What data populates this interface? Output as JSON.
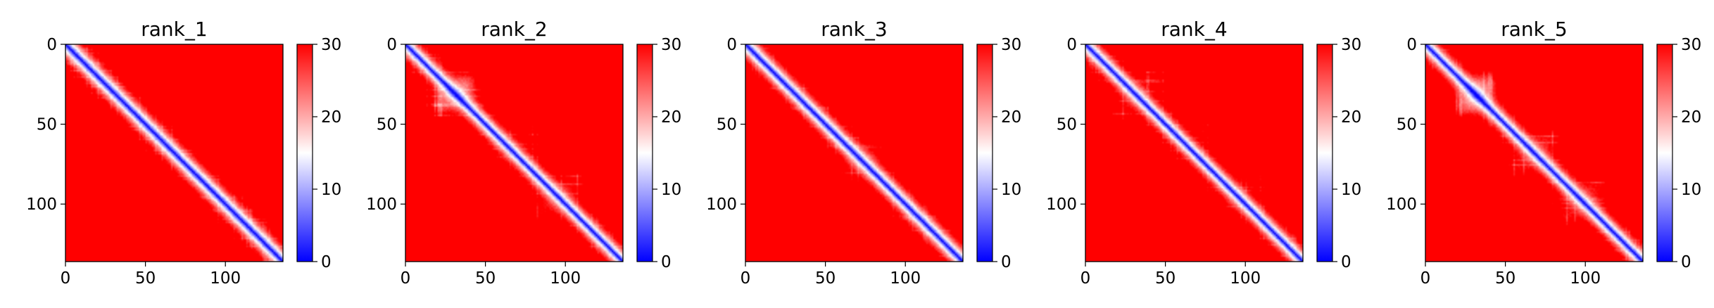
{
  "chart_data": [
    {
      "type": "heatmap",
      "title": "rank_1",
      "xlabel": "",
      "ylabel": "",
      "matrix_size": 136,
      "xlim": [
        0,
        136
      ],
      "ylim": [
        136,
        0
      ],
      "x_ticks": [
        0,
        50,
        100
      ],
      "y_ticks": [
        0,
        50,
        100
      ],
      "colorbar": {
        "range": [
          0,
          30
        ],
        "ticks": [
          0,
          10,
          20,
          30
        ],
        "colormap": "bwr"
      },
      "pattern": {
        "diagonal_value": 0,
        "band_width": 7.0,
        "saturation_value": 30,
        "offdiag_variation": "mostly saturated red with faint stripes",
        "blobs": []
      }
    },
    {
      "type": "heatmap",
      "title": "rank_2",
      "xlabel": "",
      "ylabel": "",
      "matrix_size": 136,
      "xlim": [
        0,
        136
      ],
      "ylim": [
        136,
        0
      ],
      "x_ticks": [
        0,
        50,
        100
      ],
      "y_ticks": [
        0,
        50,
        100
      ],
      "colorbar": {
        "range": [
          0,
          30
        ],
        "ticks": [
          0,
          10,
          20,
          30
        ],
        "colormap": "bwr"
      },
      "pattern": {
        "diagonal_value": 0,
        "band_width": 6.0,
        "saturation_value": 30,
        "offdiag_variation": "lighter blobs in secondary structure contacts",
        "blobs": [
          [
            40,
            20,
            22
          ],
          [
            80,
            50,
            22
          ],
          [
            108,
            82,
            22
          ],
          [
            22,
            40,
            22
          ],
          [
            50,
            80,
            22
          ],
          [
            82,
            108,
            22
          ],
          [
            75,
            20,
            24
          ],
          [
            20,
            75,
            24
          ]
        ]
      }
    },
    {
      "type": "heatmap",
      "title": "rank_3",
      "xlabel": "",
      "ylabel": "",
      "matrix_size": 136,
      "xlim": [
        0,
        136
      ],
      "ylim": [
        136,
        0
      ],
      "x_ticks": [
        0,
        50,
        100
      ],
      "y_ticks": [
        0,
        50,
        100
      ],
      "colorbar": {
        "range": [
          0,
          30
        ],
        "ticks": [
          0,
          10,
          20,
          30
        ],
        "colormap": "bwr"
      },
      "pattern": {
        "diagonal_value": 0,
        "band_width": 6.5,
        "saturation_value": 30,
        "offdiag_variation": "mostly saturated red",
        "blobs": [
          [
            85,
            60,
            25
          ],
          [
            60,
            85,
            25
          ]
        ]
      }
    },
    {
      "type": "heatmap",
      "title": "rank_4",
      "xlabel": "",
      "ylabel": "",
      "matrix_size": 136,
      "xlim": [
        0,
        136
      ],
      "ylim": [
        136,
        0
      ],
      "x_ticks": [
        0,
        50,
        100
      ],
      "y_ticks": [
        0,
        50,
        100
      ],
      "colorbar": {
        "range": [
          0,
          30
        ],
        "ticks": [
          0,
          10,
          20,
          30
        ],
        "colormap": "bwr"
      },
      "pattern": {
        "diagonal_value": 0,
        "band_width": 6.0,
        "saturation_value": 30,
        "offdiag_variation": "lighter grid-like blobs",
        "blobs": [
          [
            45,
            18,
            22
          ],
          [
            80,
            45,
            22
          ],
          [
            110,
            80,
            22
          ],
          [
            18,
            45,
            22
          ],
          [
            45,
            80,
            22
          ],
          [
            80,
            110,
            22
          ],
          [
            90,
            30,
            24
          ],
          [
            30,
            90,
            24
          ]
        ]
      }
    },
    {
      "type": "heatmap",
      "title": "rank_5",
      "xlabel": "",
      "ylabel": "",
      "matrix_size": 136,
      "xlim": [
        0,
        136
      ],
      "ylim": [
        136,
        0
      ],
      "x_ticks": [
        0,
        50,
        100
      ],
      "y_ticks": [
        0,
        50,
        100
      ],
      "colorbar": {
        "range": [
          0,
          30
        ],
        "ticks": [
          0,
          10,
          20,
          30
        ],
        "colormap": "bwr"
      },
      "pattern": {
        "diagonal_value": 0,
        "band_width": 6.0,
        "saturation_value": 30,
        "offdiag_variation": "lighter blobs",
        "blobs": [
          [
            40,
            22,
            22
          ],
          [
            80,
            55,
            22
          ],
          [
            110,
            85,
            22
          ],
          [
            22,
            40,
            22
          ],
          [
            55,
            80,
            22
          ],
          [
            85,
            110,
            22
          ]
        ]
      }
    }
  ]
}
